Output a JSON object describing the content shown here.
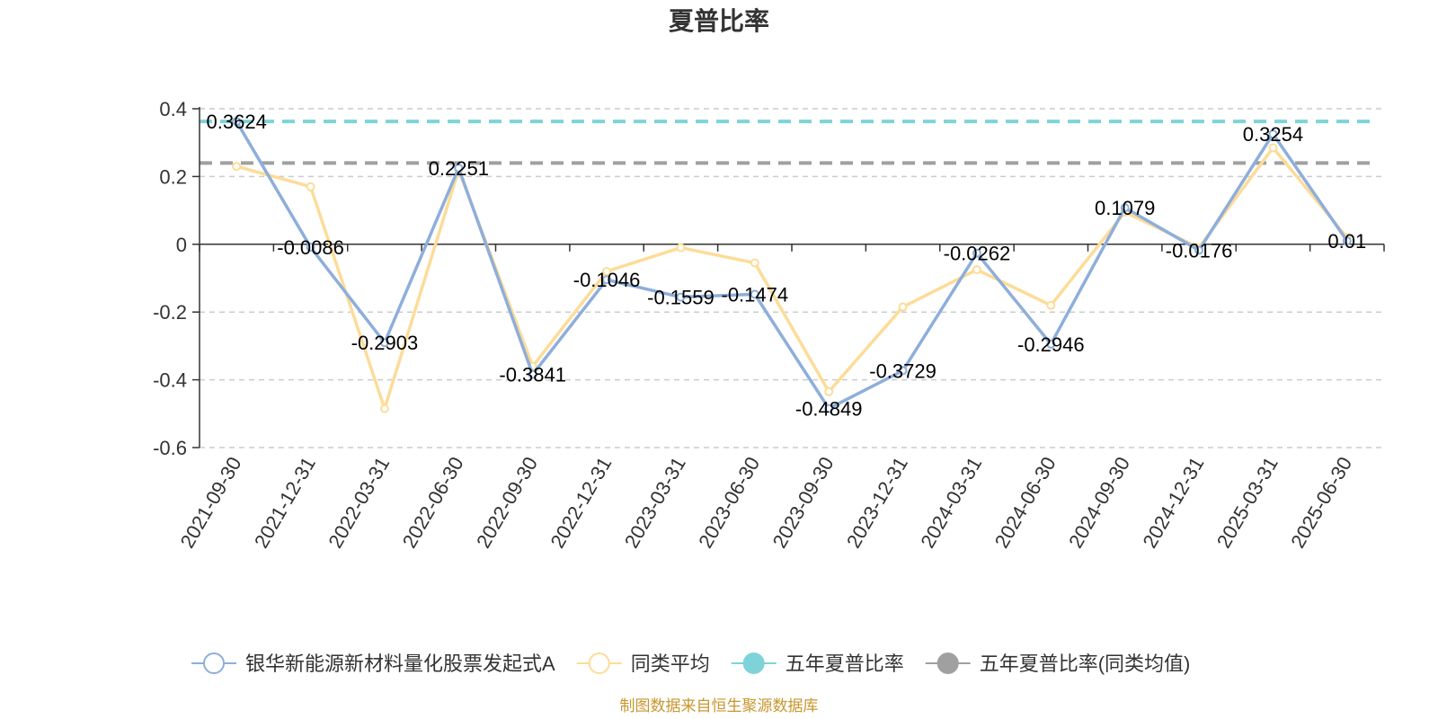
{
  "chart_data": {
    "type": "line",
    "title": "夏普比率",
    "categories": [
      "2021-09-30",
      "2021-12-31",
      "2022-03-31",
      "2022-06-30",
      "2022-09-30",
      "2022-12-31",
      "2023-03-31",
      "2023-06-30",
      "2023-09-30",
      "2023-12-31",
      "2024-03-31",
      "2024-06-30",
      "2024-09-30",
      "2024-12-31",
      "2025-03-31",
      "2025-06-30"
    ],
    "ylim": [
      -0.6,
      0.4
    ],
    "yticks": [
      0.4,
      0.2,
      0,
      -0.2,
      -0.4,
      -0.6
    ],
    "ytick_labels": [
      "0.4",
      "0.2",
      "0",
      "-0.2",
      "-0.4",
      "-0.6"
    ],
    "grid": "horizontal dashed",
    "legend_position": "bottom",
    "series": [
      {
        "name": "银华新能源新材料量化股票发起式A",
        "color": "#8eaedb",
        "values": [
          0.3624,
          -0.0086,
          -0.2903,
          0.2251,
          -0.3841,
          -0.1046,
          -0.1559,
          -0.1474,
          -0.4849,
          -0.3729,
          -0.0262,
          -0.2946,
          0.1079,
          -0.0176,
          0.3254,
          0.01
        ],
        "labels": [
          "0.3624",
          "-0.0086",
          "-0.2903",
          "0.2251",
          "-0.3841",
          "-0.1046",
          "-0.1559",
          "-0.1474",
          "-0.4849",
          "-0.3729",
          "-0.0262",
          "-0.2946",
          "0.1079",
          "-0.0176",
          "0.3254",
          "0.01"
        ]
      },
      {
        "name": "同类平均",
        "color": "#fddc98",
        "values": [
          0.23,
          0.17,
          -0.485,
          0.22,
          -0.36,
          -0.08,
          -0.01,
          -0.055,
          -0.435,
          -0.185,
          -0.075,
          -0.18,
          0.095,
          -0.01,
          0.285,
          0.02
        ]
      }
    ],
    "reference_lines": [
      {
        "name": "五年夏普比率",
        "color": "#7ed3d8",
        "value": 0.3624
      },
      {
        "name": "五年夏普比率(同类均值)",
        "color": "#a0a0a0",
        "value": 0.24
      }
    ],
    "source": "制图数据来自恒生聚源数据库"
  }
}
